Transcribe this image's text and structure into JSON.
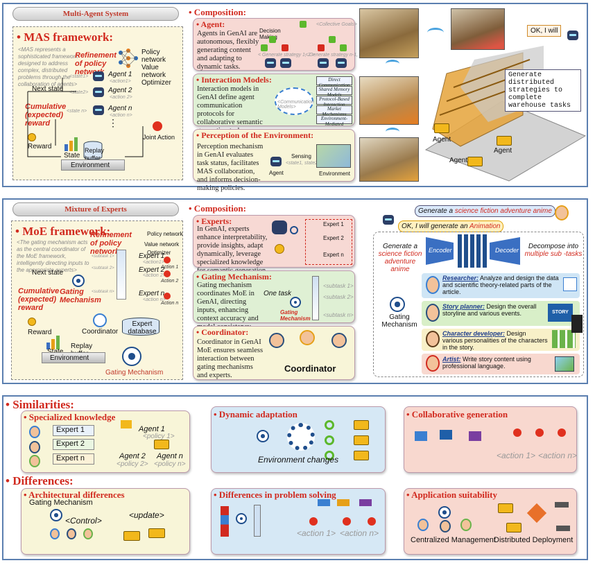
{
  "mas": {
    "section_title": "Multi-Agent System",
    "framework_title": "• MAS framework:",
    "grey_desc": "<MAS represents a sophisticated framework designed to address complex, distributed problems through the collaboration of agents>",
    "refinement": "Refinement of policy network",
    "policy_net": "Policy network",
    "value_net": "Value network",
    "optimizer": "Optimizer",
    "state1": "<state1>",
    "state2": "<state2>",
    "staten": "<state n>",
    "agent1": "Agent 1",
    "agent2": "Agent 2",
    "agentn": "Agent n",
    "action1": "<action1>",
    "action2": "<action 2>",
    "actionn": "<action n>",
    "next_state": "Next state",
    "cumulative": "Cumulative (expected) reward",
    "reward": "Reward",
    "state": "State",
    "replay": "Replay buffer",
    "environment": "Environment",
    "joint_action": "Joint Action",
    "dots": "⋮",
    "composition": "• Composition:",
    "agent_title": "• Agent:",
    "agent_text": "Agents in GenAI are autonomous, flexibly generating content and adapting to dynamic tasks.",
    "collective_goal": "<Collective Goals>",
    "decision_making": "Decision Making",
    "gen_strat1": "< Generate strategy 1, 2 >",
    "gen_stratn": "< Generate strategy n-1, n >",
    "interaction_title": "• Interaction Models:",
    "interaction_text": "Interaction models in GenAI define agent communication protocols for collaborative semantic generation tasks.",
    "communication_models": "<Communication Models>",
    "interaction_list": [
      "Direct Communication",
      "Shared Memory Models",
      "Protocol-Based Interaction",
      "Market Mechanisms",
      "Environment-Mediated"
    ],
    "perception_title": "• Perception of the Environment:",
    "perception_text": "Perception mechanism in GenAI evaluates task status, facilitates MAS collaboration, and informs decision-making policies.",
    "sensing": "Sensing",
    "state_seq": "<state1, state2...>",
    "agent_lbl": "Agent",
    "environment_lbl": "Environment",
    "ok_bubble": "OK, I will",
    "generate_bubble": "Generate distributed strategies to complete warehouse tasks",
    "agent_label1": "Agent",
    "agent_label2": "Agent",
    "agent_label3": "Agent"
  },
  "moe": {
    "section_title": "Mixture of Experts",
    "framework_title": "• MoE framework:",
    "grey_desc": "<The gating mechanism acts as the central coordinator of the MoE framework, intelligently directing inputs to the appropriate experts>",
    "refinement": "Refinement of policy network",
    "policy_net": "Policy network",
    "value_net": "Value network",
    "optimizer": "Optimizer",
    "expert1": "Expert 1",
    "expert2": "Expert 2",
    "expertn": "Expert n",
    "action1": "<action1>",
    "action2": "<action 2>",
    "actionn": "<action n>",
    "act1": "Action 1",
    "act2": "Action 2",
    "actn": "Action n",
    "subtask1": "<subtask 1>",
    "subtask2": "<subtask 2>",
    "subtaskn": "<subtask n>",
    "next_state": "Next state",
    "cumulative": "Cumulative (expected) reward",
    "gating": "Gating Mechanism",
    "coordinator": "Coordinator",
    "expert_db": "Expert database",
    "reward": "Reward",
    "state": "State",
    "replay": "Replay buffer",
    "environment": "Environment",
    "gating_bottom": "Gating Mechanism",
    "composition": "• Composition:",
    "experts_title": "• Experts:",
    "experts_text": "In GenAI, experts enhance interpretability, provide insights, adapt dynamically, leverage specialized knowledge for semantic generation",
    "gm_title": "• Gating Mechanism:",
    "gm_text": "Gating mechanism coordinates MoE in GenAI, directing inputs, enhancing context accuracy and model consistency.",
    "one_task": "One task",
    "gm_label": "Gating Mechanism",
    "coord_title": "• Coordinator:",
    "coord_text": "Coordinator in GenAI MoE ensures seamless interaction between gating mechanisms and experts.",
    "coord_label": "Coordinator",
    "prompt_prefix": "Generate a ",
    "prompt_red": "science fiction adventure anime",
    "ok_prefix": "OK, I will generate an ",
    "ok_red": "Animation",
    "gen_prefix": "Generate a",
    "gen_red": "science fiction adventure anime",
    "encoder": "Encoder",
    "decoder": "Decoder",
    "decompose_prefix": "Decompose into",
    "decompose_red": "multiple sub -tasks",
    "gating_right": "Gating Mechanism",
    "researcher_title": "Researcher:",
    "researcher_text": " Analyze and design the data and scientific theory-related parts of the article.",
    "planner_title": "Story planner:",
    "planner_text": " Design the overall storyline and various events.",
    "chardev_title": "Character developer:",
    "chardev_text": " Design various personalities of the characters in the story.",
    "artist_title": "Artist:",
    "artist_text": " Write story content using professional language.",
    "story_badge": "STORY"
  },
  "sim": {
    "title": "• Similarities:",
    "sk_title": "• Specialized knowledge",
    "experts": [
      "Expert 1",
      "Expert 2",
      "Expert n"
    ],
    "agent1": "Agent 1",
    "policy1": "<policy 1>",
    "agent2": "Agent 2",
    "agentn": "Agent n",
    "policy2": "<policy 2>",
    "policyn": "<policy n>",
    "da_title": "• Dynamic adaptation",
    "env_changes": "Environment changes",
    "cg_title": "• Collaborative generation",
    "action1": "<action 1>",
    "actionn": "<action n>"
  },
  "diff": {
    "title": "• Differences:",
    "arch_title": "• Architectural differences",
    "gating": "Gating Mechanism",
    "control": "<Control>",
    "update": "<update>",
    "ps_title": "• Differences in problem solving",
    "action1": "<action 1>",
    "actionn": "<action n>",
    "app_title": "• Application suitability",
    "centralized": "Centralized Management",
    "distributed": "Distributed Deployment"
  }
}
